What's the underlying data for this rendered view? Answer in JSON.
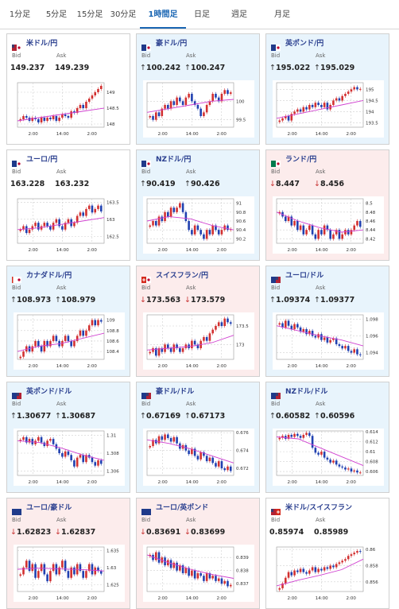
{
  "tabs": [
    "1分足",
    "5分足",
    "15分足",
    "30分足",
    "1時間足",
    "日足",
    "週足",
    "月足"
  ],
  "active_tab": 4,
  "cards": [
    {
      "name": "米ドル/円",
      "flag": "us-jp",
      "trend": "neutral",
      "bid": "149.237",
      "ask": "149.239",
      "dir": "none",
      "ticks": [
        "149",
        "148.5",
        "148"
      ],
      "xlabels": [
        "2:00",
        "14:00",
        "2:00"
      ],
      "closes": [
        148.15,
        148.25,
        148.2,
        148.1,
        148.2,
        148.15,
        148.05,
        148.2,
        148.1,
        148.2,
        148.15,
        148.25,
        148.1,
        148.2,
        148.3,
        148.25,
        148.2,
        148.4,
        148.35,
        148.5,
        148.6,
        148.5,
        148.7,
        148.8,
        148.9,
        149.0,
        149.1,
        149.2
      ],
      "ma": [
        148.1,
        148.2,
        148.3,
        148.4,
        148.5
      ],
      "ymin": 147.9,
      "ymax": 149.3
    },
    {
      "name": "豪ドル/円",
      "flag": "au-jp",
      "trend": "up",
      "bid": "100.242",
      "ask": "100.247",
      "dir": "up",
      "ticks": [
        "100",
        "99.5"
      ],
      "xlabels": [
        "2:00",
        "14:00",
        "2:00"
      ],
      "closes": [
        99.6,
        99.5,
        99.7,
        99.6,
        99.8,
        99.9,
        99.8,
        100.0,
        99.9,
        100.1,
        100.0,
        99.9,
        100.1,
        100.2,
        100.0,
        99.9,
        99.8,
        99.6,
        99.7,
        99.9,
        100.0,
        100.2,
        100.1,
        100.0,
        100.2,
        100.3,
        100.2,
        100.24
      ],
      "ma": [
        99.7,
        99.8,
        99.9,
        100.0,
        100.05
      ],
      "ymin": 99.3,
      "ymax": 100.5
    },
    {
      "name": "英ポンド/円",
      "flag": "gb-jp",
      "trend": "up",
      "bid": "195.022",
      "ask": "195.029",
      "dir": "up",
      "ticks": [
        "195",
        "194.5",
        "194",
        "193.5"
      ],
      "xlabels": [
        "2:00",
        "14:00",
        "2:00"
      ],
      "closes": [
        193.6,
        193.7,
        193.8,
        193.6,
        193.9,
        194.0,
        194.1,
        194.0,
        194.2,
        194.1,
        194.3,
        194.2,
        194.4,
        194.3,
        194.2,
        194.4,
        194.1,
        194.3,
        194.5,
        194.6,
        194.5,
        194.7,
        194.8,
        194.9,
        195.0,
        195.1,
        195.0,
        195.02
      ],
      "ma": [
        193.7,
        193.9,
        194.1,
        194.3,
        194.5
      ],
      "ymin": 193.3,
      "ymax": 195.3
    },
    {
      "name": "ユーロ/円",
      "flag": "eu-jp",
      "trend": "neutral",
      "bid": "163.228",
      "ask": "163.232",
      "dir": "none",
      "ticks": [
        "163.5",
        "163",
        "162.5"
      ],
      "xlabels": [
        "2:00",
        "14:00",
        "2:00"
      ],
      "closes": [
        162.7,
        162.8,
        162.6,
        162.7,
        162.8,
        162.9,
        162.7,
        162.8,
        162.9,
        162.8,
        162.7,
        162.9,
        163.0,
        162.8,
        162.7,
        162.9,
        163.0,
        162.8,
        162.9,
        163.1,
        163.2,
        163.1,
        163.3,
        163.4,
        163.2,
        163.3,
        163.4,
        163.23
      ],
      "ma": [
        162.7,
        162.75,
        162.85,
        162.95,
        163.05
      ],
      "ymin": 162.3,
      "ymax": 163.6
    },
    {
      "name": "NZドル/円",
      "flag": "nz-jp",
      "trend": "up",
      "bid": "90.419",
      "ask": "90.426",
      "dir": "up",
      "ticks": [
        "91",
        "90.8",
        "90.6",
        "90.4",
        "90.2"
      ],
      "xlabels": [
        "2:00",
        "14:00",
        "2:00"
      ],
      "closes": [
        90.5,
        90.6,
        90.5,
        90.7,
        90.6,
        90.8,
        90.7,
        90.9,
        90.8,
        90.9,
        91.0,
        90.8,
        90.6,
        90.4,
        90.3,
        90.5,
        90.4,
        90.3,
        90.2,
        90.4,
        90.3,
        90.5,
        90.4,
        90.3,
        90.4,
        90.5,
        90.4,
        90.42
      ],
      "ma": [
        90.6,
        90.7,
        90.65,
        90.5,
        90.4
      ],
      "ymin": 90.1,
      "ymax": 91.1
    },
    {
      "name": "ランド/円",
      "flag": "za-jp",
      "trend": "down",
      "bid": "8.447",
      "ask": "8.456",
      "dir": "down",
      "ticks": [
        "8.5",
        "8.48",
        "8.46",
        "8.44",
        "8.42"
      ],
      "xlabels": [
        "2:00",
        "14:00",
        "2:00"
      ],
      "closes": [
        8.48,
        8.47,
        8.46,
        8.47,
        8.45,
        8.46,
        8.44,
        8.45,
        8.43,
        8.44,
        8.45,
        8.43,
        8.42,
        8.44,
        8.43,
        8.45,
        8.44,
        8.42,
        8.43,
        8.44,
        8.42,
        8.43,
        8.44,
        8.43,
        8.44,
        8.45,
        8.46,
        8.447
      ],
      "ma": [
        8.48,
        8.46,
        8.445,
        8.435,
        8.44
      ],
      "ymin": 8.41,
      "ymax": 8.51
    },
    {
      "name": "カナダドル/円",
      "flag": "ca-jp",
      "trend": "up",
      "bid": "108.973",
      "ask": "108.979",
      "dir": "up",
      "ticks": [
        "109",
        "108.8",
        "108.6",
        "108.4"
      ],
      "xlabels": [
        "2:00",
        "14:00",
        "2:00"
      ],
      "closes": [
        108.3,
        108.4,
        108.5,
        108.4,
        108.5,
        108.6,
        108.5,
        108.4,
        108.6,
        108.5,
        108.6,
        108.7,
        108.6,
        108.5,
        108.6,
        108.7,
        108.6,
        108.5,
        108.6,
        108.7,
        108.8,
        108.7,
        108.8,
        108.9,
        109.0,
        108.9,
        109.0,
        108.97
      ],
      "ma": [
        108.4,
        108.5,
        108.55,
        108.65,
        108.75
      ],
      "ymin": 108.25,
      "ymax": 109.1
    },
    {
      "name": "スイスフラン/円",
      "flag": "ch-jp",
      "trend": "down",
      "bid": "173.563",
      "ask": "173.579",
      "dir": "down",
      "ticks": [
        "173.5",
        "173"
      ],
      "xlabels": [
        "2:00",
        "14:00",
        "2:00"
      ],
      "closes": [
        172.8,
        172.9,
        172.7,
        172.9,
        172.8,
        173.0,
        172.9,
        172.8,
        173.0,
        172.9,
        172.8,
        172.9,
        173.0,
        172.9,
        173.1,
        173.0,
        172.9,
        173.1,
        173.2,
        173.1,
        173.3,
        173.4,
        173.5,
        173.6,
        173.5,
        173.7,
        173.6,
        173.56
      ],
      "ma": [
        172.85,
        172.9,
        172.95,
        173.05,
        173.25
      ],
      "ymin": 172.6,
      "ymax": 173.8
    },
    {
      "name": "ユーロ/ドル",
      "flag": "eu-us",
      "trend": "up",
      "bid": "1.09374",
      "ask": "1.09377",
      "dir": "up",
      "ticks": [
        "1.098",
        "1.096",
        "1.094"
      ],
      "xlabels": [
        "2:00",
        "14:00",
        "2:00"
      ],
      "closes": [
        1.0975,
        1.097,
        1.0978,
        1.0972,
        1.0968,
        1.0974,
        1.097,
        1.0965,
        1.0968,
        1.0962,
        1.0966,
        1.096,
        1.0958,
        1.0962,
        1.0955,
        1.0958,
        1.0952,
        1.0955,
        1.0957,
        1.095,
        1.0948,
        1.0945,
        1.0948,
        1.0942,
        1.094,
        1.0944,
        1.0938,
        1.0937
      ],
      "ma": [
        1.0972,
        1.0966,
        1.096,
        1.0955,
        1.0948
      ],
      "ymin": 1.0932,
      "ymax": 1.0985
    },
    {
      "name": "英ポンド/ドル",
      "flag": "gb-us",
      "trend": "up",
      "bid": "1.30677",
      "ask": "1.30687",
      "dir": "up",
      "ticks": [
        "1.31",
        "1.308",
        "1.306"
      ],
      "xlabels": [
        "2:00",
        "14:00",
        "2:00"
      ],
      "closes": [
        1.3095,
        1.3098,
        1.3092,
        1.3096,
        1.309,
        1.3094,
        1.3098,
        1.3092,
        1.3088,
        1.3094,
        1.3096,
        1.309,
        1.3085,
        1.308,
        1.3076,
        1.3082,
        1.3078,
        1.3072,
        1.3065,
        1.3075,
        1.3078,
        1.307,
        1.3078,
        1.3075,
        1.307,
        1.3066,
        1.3072,
        1.3068
      ],
      "ma": [
        1.3094,
        1.3092,
        1.3086,
        1.3078,
        1.3072
      ],
      "ymin": 1.3055,
      "ymax": 1.3105
    },
    {
      "name": "豪ドル/ドル",
      "flag": "au-us",
      "trend": "up",
      "bid": "0.67169",
      "ask": "0.67173",
      "dir": "up",
      "ticks": [
        "0.676",
        "0.674",
        "0.672"
      ],
      "xlabels": [
        "2:00",
        "14:00",
        "2:00"
      ],
      "closes": [
        0.6745,
        0.6752,
        0.6748,
        0.6756,
        0.6752,
        0.6758,
        0.6754,
        0.675,
        0.6755,
        0.6748,
        0.6742,
        0.6746,
        0.674,
        0.6736,
        0.6742,
        0.6734,
        0.673,
        0.6738,
        0.6734,
        0.6728,
        0.6732,
        0.6726,
        0.6722,
        0.6728,
        0.672,
        0.6718,
        0.6722,
        0.6717
      ],
      "ma": [
        0.6752,
        0.6748,
        0.6742,
        0.6734,
        0.6726
      ],
      "ymin": 0.6712,
      "ymax": 0.6762
    },
    {
      "name": "NZドル/ドル",
      "flag": "nz-us",
      "trend": "up",
      "bid": "0.60582",
      "ask": "0.60596",
      "dir": "up",
      "ticks": [
        "0.614",
        "0.612",
        "0.61",
        "0.608",
        "0.606"
      ],
      "xlabels": [
        "2:00",
        "14:00",
        "2:00"
      ],
      "closes": [
        0.6128,
        0.6132,
        0.6126,
        0.6134,
        0.613,
        0.6136,
        0.6132,
        0.6128,
        0.6134,
        0.6138,
        0.6132,
        0.6108,
        0.6098,
        0.6094,
        0.61,
        0.6088,
        0.6084,
        0.6078,
        0.6082,
        0.6074,
        0.607,
        0.6068,
        0.6064,
        0.6066,
        0.606,
        0.6062,
        0.6058,
        0.6058
      ],
      "ma": [
        0.613,
        0.6126,
        0.6108,
        0.609,
        0.6072
      ],
      "ymin": 0.6052,
      "ymax": 0.6142
    },
    {
      "name": "ユーロ/豪ドル",
      "flag": "eu-au",
      "trend": "down",
      "bid": "1.62823",
      "ask": "1.62837",
      "dir": "down",
      "ticks": [
        "1.635",
        "1.63",
        "1.625"
      ],
      "xlabels": [
        "2:00",
        "14:00",
        "2:00"
      ],
      "closes": [
        1.628,
        1.63,
        1.632,
        1.629,
        1.631,
        1.627,
        1.629,
        1.631,
        1.628,
        1.626,
        1.629,
        1.631,
        1.628,
        1.63,
        1.632,
        1.629,
        1.627,
        1.63,
        1.628,
        1.631,
        1.629,
        1.627,
        1.629,
        1.631,
        1.628,
        1.63,
        1.629,
        1.6282
      ],
      "ma": [
        1.6295,
        1.6298,
        1.6296,
        1.6294,
        1.629
      ],
      "ymin": 1.623,
      "ymax": 1.636
    },
    {
      "name": "ユーロ/英ポンド",
      "flag": "eu-gb",
      "trend": "down",
      "bid": "0.83691",
      "ask": "0.83699",
      "dir": "down",
      "ticks": [
        "0.839",
        "0.838",
        "0.837"
      ],
      "xlabels": [
        "2:00",
        "14:00",
        "2:00"
      ],
      "closes": [
        0.8392,
        0.8388,
        0.8394,
        0.8386,
        0.839,
        0.8384,
        0.8388,
        0.8382,
        0.8386,
        0.838,
        0.8384,
        0.8378,
        0.8382,
        0.8376,
        0.838,
        0.8374,
        0.8378,
        0.8376,
        0.8372,
        0.8378,
        0.8374,
        0.8376,
        0.8372,
        0.8374,
        0.837,
        0.8372,
        0.8368,
        0.8369
      ],
      "ma": [
        0.8392,
        0.8386,
        0.8381,
        0.8377,
        0.8374
      ],
      "ymin": 0.8364,
      "ymax": 0.8398
    },
    {
      "name": "米ドル/スイスフラン",
      "flag": "us-ch",
      "trend": "neutral",
      "bid": "0.85974",
      "ask": "0.85989",
      "dir": "none",
      "ticks": [
        "0.86",
        "0.858",
        "0.856"
      ],
      "xlabels": [
        "2:00",
        "14:00",
        "2:00"
      ],
      "closes": [
        0.8552,
        0.8558,
        0.8565,
        0.8572,
        0.8568,
        0.8574,
        0.8572,
        0.8576,
        0.8572,
        0.857,
        0.8574,
        0.8578,
        0.8572,
        0.8576,
        0.8574,
        0.8578,
        0.8576,
        0.858,
        0.8578,
        0.8582,
        0.8584,
        0.8586,
        0.8588,
        0.8592,
        0.8594,
        0.8596,
        0.8598,
        0.8597
      ],
      "ma": [
        0.8555,
        0.8562,
        0.8568,
        0.8575,
        0.8588
      ],
      "ymin": 0.8548,
      "ymax": 0.8603
    }
  ],
  "labels": {
    "bid": "Bid",
    "ask": "Ask"
  },
  "colors": {
    "up": "#1a66b3",
    "down": "#c83232",
    "ma": "#d040d0",
    "blue": "#3050c0",
    "grid": "#cfcfcf"
  }
}
